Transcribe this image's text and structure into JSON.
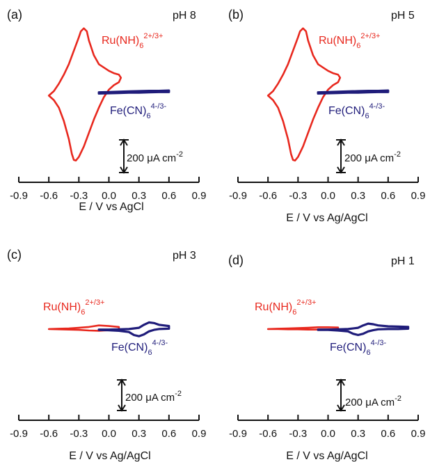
{
  "colors": {
    "ru": "#e8281e",
    "fe": "#1f1c7a",
    "axis": "#111111"
  },
  "chart_data": [
    {
      "type": "line",
      "panel": "(a)",
      "condition": "pH 8",
      "xlabel": "E /  V vs AgCl",
      "ylabel": "",
      "xlim": [
        -0.9,
        0.9
      ],
      "x_ticks": [
        -0.9,
        -0.6,
        -0.3,
        0.0,
        0.3,
        0.6,
        0.9
      ],
      "x_tick_labels": [
        "-0.9",
        "-0.6",
        "-0.3",
        "0.0",
        "0.3",
        "0.6",
        "0.9"
      ],
      "scale_bar": {
        "value": 200,
        "label": "200 μA cm",
        "exponent": "-2"
      },
      "series": [
        {
          "label_base": "Ru(NH)",
          "label_sub": "6",
          "label_sup": "2+/3+",
          "color_key": "ru",
          "x": [
            -0.6,
            -0.55,
            -0.5,
            -0.45,
            -0.4,
            -0.35,
            -0.3,
            -0.28,
            -0.25,
            -0.22,
            -0.2,
            -0.15,
            -0.1,
            0.0,
            0.05,
            0.1,
            0.12,
            0.1,
            0.05,
            0.0,
            -0.05,
            -0.1,
            -0.15,
            -0.2,
            -0.25,
            -0.3,
            -0.33,
            -0.35,
            -0.37,
            -0.4,
            -0.45,
            -0.5,
            -0.55,
            -0.6
          ],
          "y": [
            -0.15,
            0.0,
            0.25,
            0.55,
            0.9,
            1.35,
            1.8,
            2.0,
            2.1,
            2.0,
            1.7,
            1.2,
            0.9,
            0.68,
            0.6,
            0.55,
            0.45,
            0.3,
            0.2,
            0.05,
            -0.2,
            -0.55,
            -0.95,
            -1.4,
            -1.85,
            -2.2,
            -2.32,
            -2.3,
            -2.1,
            -1.6,
            -1.0,
            -0.55,
            -0.3,
            -0.15
          ]
        },
        {
          "label_base": "Fe(CN)",
          "label_sub": "6",
          "label_sup": "4-/3-",
          "color_key": "fe",
          "x": [
            -0.1,
            0.0,
            0.1,
            0.2,
            0.3,
            0.4,
            0.5,
            0.6,
            0.6,
            0.5,
            0.4,
            0.3,
            0.2,
            0.1,
            0.0,
            -0.1
          ],
          "y": [
            -0.08,
            -0.07,
            -0.06,
            -0.05,
            -0.05,
            -0.04,
            -0.03,
            -0.03,
            0.02,
            0.01,
            0.01,
            0.0,
            -0.01,
            -0.02,
            -0.03,
            -0.04
          ]
        }
      ]
    },
    {
      "type": "line",
      "panel": "(b)",
      "condition": "pH 5",
      "xlabel": "E /  V vs Ag/AgCl",
      "ylabel": "",
      "xlim": [
        -0.9,
        0.9
      ],
      "x_ticks": [
        -0.9,
        -0.6,
        -0.3,
        0.0,
        0.3,
        0.6,
        0.9
      ],
      "x_tick_labels": [
        "-0.9",
        "-0.6",
        "-0.3",
        "0.0",
        "0.3",
        "0.6",
        "0.9"
      ],
      "scale_bar": {
        "value": 200,
        "label": "200 μA cm",
        "exponent": "-2"
      },
      "series": [
        {
          "label_base": "Ru(NH)",
          "label_sub": "6",
          "label_sup": "2+/3+",
          "color_key": "ru",
          "x": [
            -0.6,
            -0.55,
            -0.5,
            -0.45,
            -0.4,
            -0.35,
            -0.3,
            -0.28,
            -0.25,
            -0.22,
            -0.2,
            -0.15,
            -0.1,
            0.0,
            0.05,
            0.1,
            0.12,
            0.1,
            0.05,
            0.0,
            -0.05,
            -0.1,
            -0.15,
            -0.2,
            -0.25,
            -0.3,
            -0.33,
            -0.35,
            -0.37,
            -0.4,
            -0.45,
            -0.5,
            -0.55,
            -0.6
          ],
          "y": [
            -0.15,
            0.0,
            0.25,
            0.55,
            0.9,
            1.35,
            1.8,
            2.0,
            2.1,
            2.0,
            1.7,
            1.2,
            0.9,
            0.68,
            0.6,
            0.55,
            0.45,
            0.3,
            0.2,
            0.05,
            -0.2,
            -0.55,
            -0.95,
            -1.4,
            -1.85,
            -2.2,
            -2.32,
            -2.3,
            -2.1,
            -1.6,
            -1.0,
            -0.55,
            -0.3,
            -0.15
          ]
        },
        {
          "label_base": "Fe(CN)",
          "label_sub": "6",
          "label_sup": "4-/3-",
          "color_key": "fe",
          "x": [
            -0.1,
            0.0,
            0.1,
            0.2,
            0.3,
            0.4,
            0.5,
            0.6,
            0.6,
            0.5,
            0.4,
            0.3,
            0.2,
            0.1,
            0.0,
            -0.1
          ],
          "y": [
            -0.08,
            -0.07,
            -0.06,
            -0.05,
            -0.05,
            -0.04,
            -0.03,
            -0.03,
            0.02,
            0.01,
            0.01,
            0.0,
            -0.01,
            -0.02,
            -0.03,
            -0.04
          ]
        }
      ]
    },
    {
      "type": "line",
      "panel": "(c)",
      "condition": "pH 3",
      "xlabel": "E / V vs Ag/AgCl",
      "ylabel": "",
      "xlim": [
        -0.9,
        0.9
      ],
      "x_ticks": [
        -0.9,
        -0.6,
        -0.3,
        0.0,
        0.3,
        0.6,
        0.9
      ],
      "x_tick_labels": [
        "-0.9",
        "-0.6",
        "-0.3",
        "0.0",
        "0.3",
        "0.6",
        "0.9"
      ],
      "scale_bar": {
        "value": 200,
        "label": "200 μA cm",
        "exponent": "-2"
      },
      "series": [
        {
          "label_base": "Ru(NH)",
          "label_sub": "6",
          "label_sup": "2+/3+",
          "color_key": "ru",
          "x": [
            -0.6,
            -0.5,
            -0.4,
            -0.3,
            -0.2,
            -0.1,
            0.0,
            0.1,
            0.1,
            0.0,
            -0.1,
            -0.2,
            -0.3,
            -0.4,
            -0.5,
            -0.6
          ],
          "y": [
            -0.02,
            -0.01,
            0.0,
            0.02,
            0.05,
            0.1,
            0.08,
            0.05,
            -0.02,
            -0.06,
            -0.08,
            -0.07,
            -0.05,
            -0.04,
            -0.03,
            -0.02
          ]
        },
        {
          "label_base": "Fe(CN)",
          "label_sub": "6",
          "label_sup": "4-/3-",
          "color_key": "fe",
          "x": [
            -0.1,
            0.0,
            0.1,
            0.2,
            0.3,
            0.35,
            0.4,
            0.45,
            0.5,
            0.6,
            0.6,
            0.5,
            0.45,
            0.4,
            0.35,
            0.3,
            0.25,
            0.2,
            0.1,
            0.0,
            -0.1
          ],
          "y": [
            -0.04,
            -0.04,
            -0.03,
            -0.02,
            0.02,
            0.12,
            0.2,
            0.18,
            0.12,
            0.08,
            -0.01,
            -0.02,
            -0.05,
            -0.1,
            -0.2,
            -0.26,
            -0.22,
            -0.12,
            -0.08,
            -0.06,
            -0.05
          ]
        }
      ]
    },
    {
      "type": "line",
      "panel": "(d)",
      "condition": "pH 1",
      "xlabel": "E / V vs Ag/AgCl",
      "ylabel": "",
      "xlim": [
        -0.9,
        0.9
      ],
      "x_ticks": [
        -0.9,
        -0.6,
        -0.3,
        0.0,
        0.3,
        0.6,
        0.9
      ],
      "x_tick_labels": [
        "-0.9",
        "-0.6",
        "-0.3",
        "0.0",
        "0.3",
        "0.6",
        "0.9"
      ],
      "scale_bar": {
        "value": 200,
        "label": "200 μA cm",
        "exponent": "-2"
      },
      "series": [
        {
          "label_base": "Ru(NH)",
          "label_sub": "6",
          "label_sup": "2+/3+",
          "color_key": "ru",
          "x": [
            -0.6,
            -0.5,
            -0.4,
            -0.3,
            -0.2,
            -0.1,
            0.0,
            0.1,
            0.1,
            0.0,
            -0.1,
            -0.2,
            -0.3,
            -0.4,
            -0.5,
            -0.6
          ],
          "y": [
            -0.02,
            -0.01,
            0.0,
            0.01,
            0.02,
            0.04,
            0.04,
            0.03,
            -0.02,
            -0.03,
            -0.04,
            -0.04,
            -0.03,
            -0.03,
            -0.02,
            -0.02
          ]
        },
        {
          "label_base": "Fe(CN)",
          "label_sub": "6",
          "label_sup": "4-/3-",
          "color_key": "fe",
          "x": [
            -0.1,
            0.0,
            0.1,
            0.2,
            0.3,
            0.35,
            0.4,
            0.45,
            0.5,
            0.6,
            0.7,
            0.8,
            0.8,
            0.7,
            0.6,
            0.5,
            0.45,
            0.4,
            0.35,
            0.3,
            0.25,
            0.2,
            0.1,
            0.0,
            -0.1
          ],
          "y": [
            -0.04,
            -0.04,
            -0.03,
            -0.02,
            0.02,
            0.1,
            0.16,
            0.14,
            0.1,
            0.07,
            0.06,
            0.05,
            -0.01,
            -0.02,
            -0.02,
            -0.03,
            -0.06,
            -0.1,
            -0.18,
            -0.22,
            -0.18,
            -0.1,
            -0.07,
            -0.05,
            -0.05
          ]
        }
      ]
    }
  ]
}
